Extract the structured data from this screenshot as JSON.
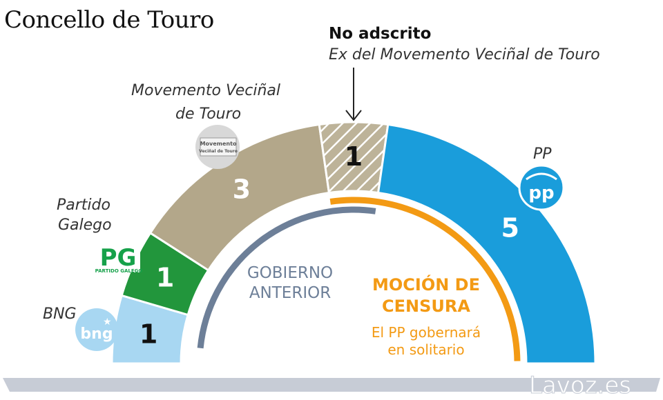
{
  "title": "Concello de Touro",
  "note": {
    "heading": "No adscrito",
    "subheading": "Ex del Movemento Veciñal de Touro"
  },
  "labels": {
    "mvt_line1": "Movemento Veciñal",
    "mvt_line2": "de Touro",
    "pg_line1": "Partido",
    "pg_line2": "Galego",
    "bng": "BNG",
    "pp": "PP"
  },
  "logos": {
    "bng": "bng",
    "pg": "PG",
    "pg_caption": "PARTIDO GALEGO",
    "pp": "pp",
    "mvt_line1": "Movemento",
    "mvt_line2": "Veciñal de Touro"
  },
  "gobierno": {
    "line1": "GOBIERNO",
    "line2": "ANTERIOR"
  },
  "mocion": {
    "line1": "MOCIÓN DE",
    "line2": "CENSURA",
    "sub1": "El PP gobernará",
    "sub2": "en solitario"
  },
  "watermark": "Lavoz.es",
  "chart_data": {
    "type": "parliament-semicircle",
    "total_seats": 11,
    "series": [
      {
        "name": "BNG",
        "values": [
          1
        ],
        "color": "#a8d7f2",
        "label": "1"
      },
      {
        "name": "Partido Galego",
        "values": [
          1
        ],
        "color": "#22963c",
        "label": "1"
      },
      {
        "name": "Movemento Veciñal de Touro",
        "values": [
          3
        ],
        "color": "#b3a78a",
        "label": "3"
      },
      {
        "name": "No adscrito",
        "values": [
          1
        ],
        "color": "#b3a78a",
        "hatched": true,
        "label": "1"
      },
      {
        "name": "PP",
        "values": [
          5
        ],
        "color": "#1a9ddb",
        "label": "5"
      }
    ],
    "groupings": [
      {
        "name": "GOBIERNO ANTERIOR",
        "seats_from": 0,
        "seats_to": 6,
        "color": "#6d7f98"
      },
      {
        "name": "MOCIÓN DE CENSURA",
        "seats_from": 5,
        "seats_to": 11,
        "color": "#f39a14"
      }
    ]
  }
}
